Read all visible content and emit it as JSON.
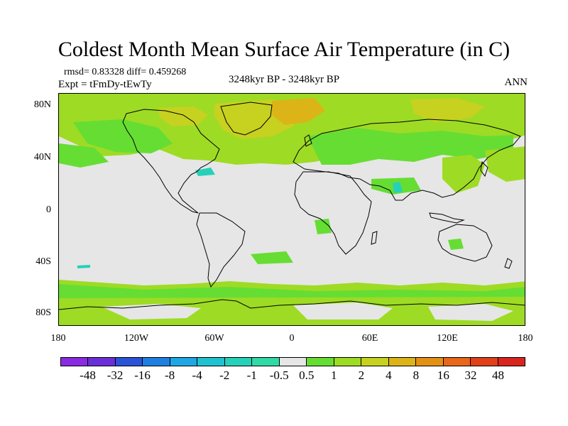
{
  "title": "Coldest Month Mean Surface Air Temperature (in C)",
  "stats": "rmsd= 0.83328  diff= 0.459268",
  "experiment": "Expt = tFmDy-tEwTy",
  "period": "3248kyr BP - 3248kyr BP",
  "season": "ANN",
  "lat_labels": [
    "80N",
    "40N",
    "0",
    "40S",
    "80S"
  ],
  "lon_labels": [
    "180",
    "120W",
    "60W",
    "0",
    "60E",
    "120E",
    "180"
  ],
  "colorbar": {
    "labels": [
      "-48",
      "-32",
      "-16",
      "-8",
      "-4",
      "-2",
      "-1",
      "-0.5",
      "0.5",
      "1",
      "2",
      "4",
      "8",
      "16",
      "32",
      "48"
    ],
    "colors": [
      "#8a2be2",
      "#6a2fd6",
      "#2c52d8",
      "#1f7fe0",
      "#1fa7e5",
      "#20c2cf",
      "#25d1b8",
      "#30d9a6",
      "#e6e6e6",
      "#66dd33",
      "#9edb24",
      "#c7d11f",
      "#dcb418",
      "#e39116",
      "#e8671a",
      "#e0401a",
      "#d8261e"
    ]
  },
  "colors": {
    "ocean_neutral": "#e6e6e6",
    "warm_1": "#66dd33",
    "warm_2": "#9edb24",
    "warm_4": "#c7d11f",
    "cool": "#25d1b8",
    "coast": "#000000"
  }
}
